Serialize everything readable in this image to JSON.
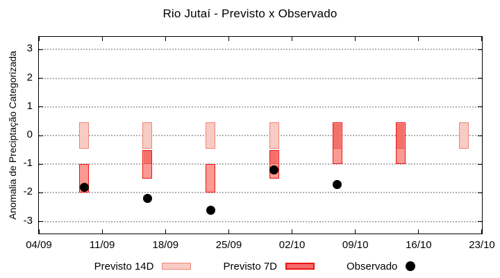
{
  "title": "Rio Jutaí - Previsto x Observado",
  "y_axis_label": "Anomalia de Preciptação Categorizada",
  "legend": {
    "previsto14_label": "Previsto 14D",
    "previsto7_label": "Previsto 7D",
    "observado_label": "Observado"
  },
  "colors": {
    "p14_fill": "#f8cbc4",
    "p14_border": "#ee8474",
    "p7_fill": "#fb9a93",
    "p7_overlap_fill": "#f3716b",
    "p7_border": "#ee1111",
    "p7_divider": "#e84f48",
    "legend_p7_fill": "#f56b6b",
    "observed": "#000000",
    "grid": "#b0b0b0",
    "text": "#000000"
  },
  "chart_data": {
    "type": "bar",
    "subtype": "forecast-interval-boxes-with-observed-scatter",
    "title": "Rio Jutaí - Previsto x Observado",
    "xlabel": "",
    "ylabel": "Anomalia de Preciptação Categorizada",
    "ylim": [
      -3.45,
      3.45
    ],
    "y_ticks": [
      3,
      2,
      1,
      0,
      -1,
      -2,
      -3
    ],
    "y_tick_labels": [
      "3",
      "2",
      "1",
      "0",
      "-1",
      "-2",
      "-3"
    ],
    "x_tick_labels": [
      "04/09",
      "11/09",
      "18/09",
      "25/09",
      "02/10",
      "09/10",
      "16/10",
      "23/10"
    ],
    "x_range_days": 49,
    "grid": "dotted horizontal",
    "legend_position": "bottom-center",
    "categories": [
      "09/09",
      "16/09",
      "23/09",
      "30/09",
      "07/10",
      "14/10",
      "21/10"
    ],
    "day_offsets": [
      5,
      12,
      19,
      26,
      33,
      40,
      47
    ],
    "series": [
      {
        "name": "Previsto 14D",
        "type": "box",
        "ranges": [
          [
            0.45,
            -0.45
          ],
          [
            0.45,
            -0.45
          ],
          [
            0.45,
            -0.45
          ],
          [
            0.45,
            -0.45
          ],
          [
            0.45,
            -0.45
          ],
          [
            0.45,
            -0.45
          ],
          [
            0.45,
            -0.45
          ]
        ]
      },
      {
        "name": "Previsto 7D",
        "type": "box",
        "ranges": [
          [
            -1,
            -2
          ],
          [
            -0.5,
            -1.5
          ],
          [
            -1,
            -2
          ],
          [
            -0.5,
            -1.5
          ],
          [
            0.45,
            -1
          ],
          [
            0.45,
            -1
          ],
          null
        ]
      },
      {
        "name": "Previsto 7D (overlap segment, darker)",
        "type": "box",
        "ranges": [
          null,
          [
            -0.5,
            -1
          ],
          null,
          [
            -0.5,
            -1
          ],
          [
            0.45,
            -0.45
          ],
          [
            0.45,
            -0.45
          ],
          null
        ]
      },
      {
        "name": "Observado",
        "type": "scatter",
        "values": [
          -1.8,
          -2.2,
          -2.6,
          -1.2,
          -1.7,
          null,
          null
        ]
      }
    ]
  }
}
